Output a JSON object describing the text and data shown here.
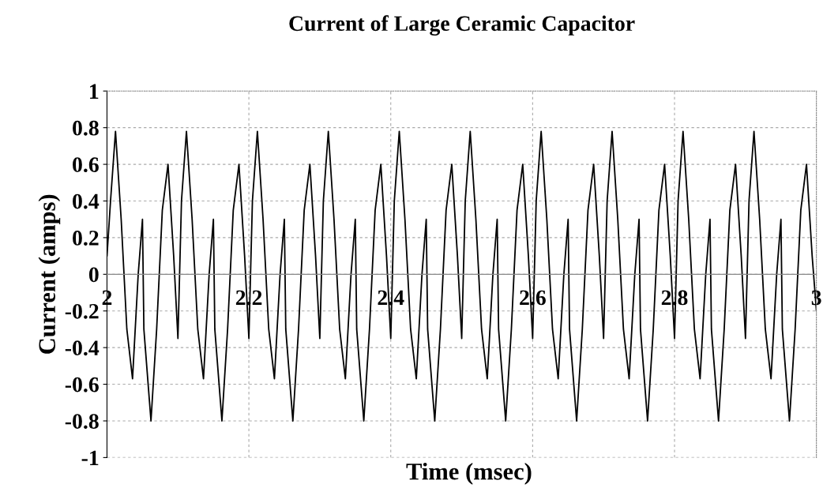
{
  "chart_data": {
    "type": "line",
    "title": "Current of Large Ceramic Capacitor",
    "xlabel": "Time (msec)",
    "ylabel": "Current (amps)",
    "x": [
      2.0,
      2.005,
      2.012,
      2.02,
      2.028,
      2.036,
      2.044,
      2.05,
      2.052,
      2.062,
      2.07,
      2.078,
      2.086,
      2.094,
      2.1,
      2.105,
      2.112,
      2.12,
      2.128,
      2.136,
      2.144,
      2.15,
      2.152,
      2.162,
      2.17,
      2.178,
      2.186,
      2.194,
      2.2,
      2.205,
      2.212,
      2.22,
      2.228,
      2.236,
      2.244,
      2.25,
      2.252,
      2.262,
      2.27,
      2.278,
      2.286,
      2.294,
      2.3,
      2.305,
      2.312,
      2.32,
      2.328,
      2.336,
      2.344,
      2.35,
      2.352,
      2.362,
      2.37,
      2.378,
      2.386,
      2.394,
      2.4,
      2.405,
      2.412,
      2.42,
      2.428,
      2.436,
      2.444,
      2.45,
      2.452,
      2.462,
      2.47,
      2.478,
      2.486,
      2.494,
      2.5,
      2.505,
      2.512,
      2.52,
      2.528,
      2.536,
      2.544,
      2.55,
      2.552,
      2.562,
      2.57,
      2.578,
      2.586,
      2.594,
      2.6,
      2.605,
      2.612,
      2.62,
      2.628,
      2.636,
      2.644,
      2.65,
      2.652,
      2.662,
      2.67,
      2.678,
      2.686,
      2.694,
      2.7,
      2.705,
      2.712,
      2.72,
      2.728,
      2.736,
      2.744,
      2.75,
      2.752,
      2.762,
      2.77,
      2.778,
      2.786,
      2.794,
      2.8,
      2.805,
      2.812,
      2.82,
      2.828,
      2.836,
      2.844,
      2.85,
      2.852,
      2.862,
      2.87,
      2.878,
      2.886,
      2.894,
      2.9,
      2.905,
      2.912,
      2.92,
      2.928,
      2.936,
      2.944,
      2.95,
      2.952,
      2.962,
      2.97,
      2.978,
      2.986,
      2.994,
      3.0
    ],
    "series": [
      {
        "color": "#000000",
        "values": [
          0.1,
          0.4,
          0.78,
          0.3,
          -0.3,
          -0.57,
          0.0,
          0.3,
          -0.3,
          -0.8,
          -0.3,
          0.35,
          0.6,
          0.1,
          -0.35,
          0.4,
          0.78,
          0.3,
          -0.3,
          -0.57,
          0.0,
          0.3,
          -0.3,
          -0.8,
          -0.3,
          0.35,
          0.6,
          0.1,
          -0.35,
          0.4,
          0.78,
          0.3,
          -0.3,
          -0.57,
          0.0,
          0.3,
          -0.3,
          -0.8,
          -0.3,
          0.35,
          0.6,
          0.1,
          -0.35,
          0.4,
          0.78,
          0.3,
          -0.3,
          -0.57,
          0.0,
          0.3,
          -0.3,
          -0.8,
          -0.3,
          0.35,
          0.6,
          0.1,
          -0.35,
          0.4,
          0.78,
          0.3,
          -0.3,
          -0.57,
          0.0,
          0.3,
          -0.3,
          -0.8,
          -0.3,
          0.35,
          0.6,
          0.1,
          -0.35,
          0.4,
          0.78,
          0.3,
          -0.3,
          -0.57,
          0.0,
          0.3,
          -0.3,
          -0.8,
          -0.3,
          0.35,
          0.6,
          0.1,
          -0.35,
          0.4,
          0.78,
          0.3,
          -0.3,
          -0.57,
          0.0,
          0.3,
          -0.3,
          -0.8,
          -0.3,
          0.35,
          0.6,
          0.1,
          -0.35,
          0.4,
          0.78,
          0.3,
          -0.3,
          -0.57,
          0.0,
          0.3,
          -0.3,
          -0.8,
          -0.3,
          0.35,
          0.6,
          0.1,
          -0.35,
          0.4,
          0.78,
          0.3,
          -0.3,
          -0.57,
          0.0,
          0.3,
          -0.3,
          -0.8,
          -0.3,
          0.35,
          0.6,
          0.1,
          -0.35,
          0.4,
          0.78,
          0.3,
          -0.3,
          -0.57,
          0.0,
          0.3,
          -0.3,
          -0.8,
          -0.3,
          0.35,
          0.6,
          0.1,
          -0.2
        ]
      }
    ],
    "xlim": [
      2,
      3
    ],
    "xticks": [
      2,
      2.2,
      2.4,
      2.6,
      2.8,
      3
    ],
    "ylim": [
      -1,
      1
    ],
    "yticks": [
      -1,
      -0.8,
      -0.6,
      -0.4,
      -0.2,
      0,
      0.2,
      0.4,
      0.6,
      0.8,
      1
    ],
    "grid": true,
    "legend": false
  }
}
